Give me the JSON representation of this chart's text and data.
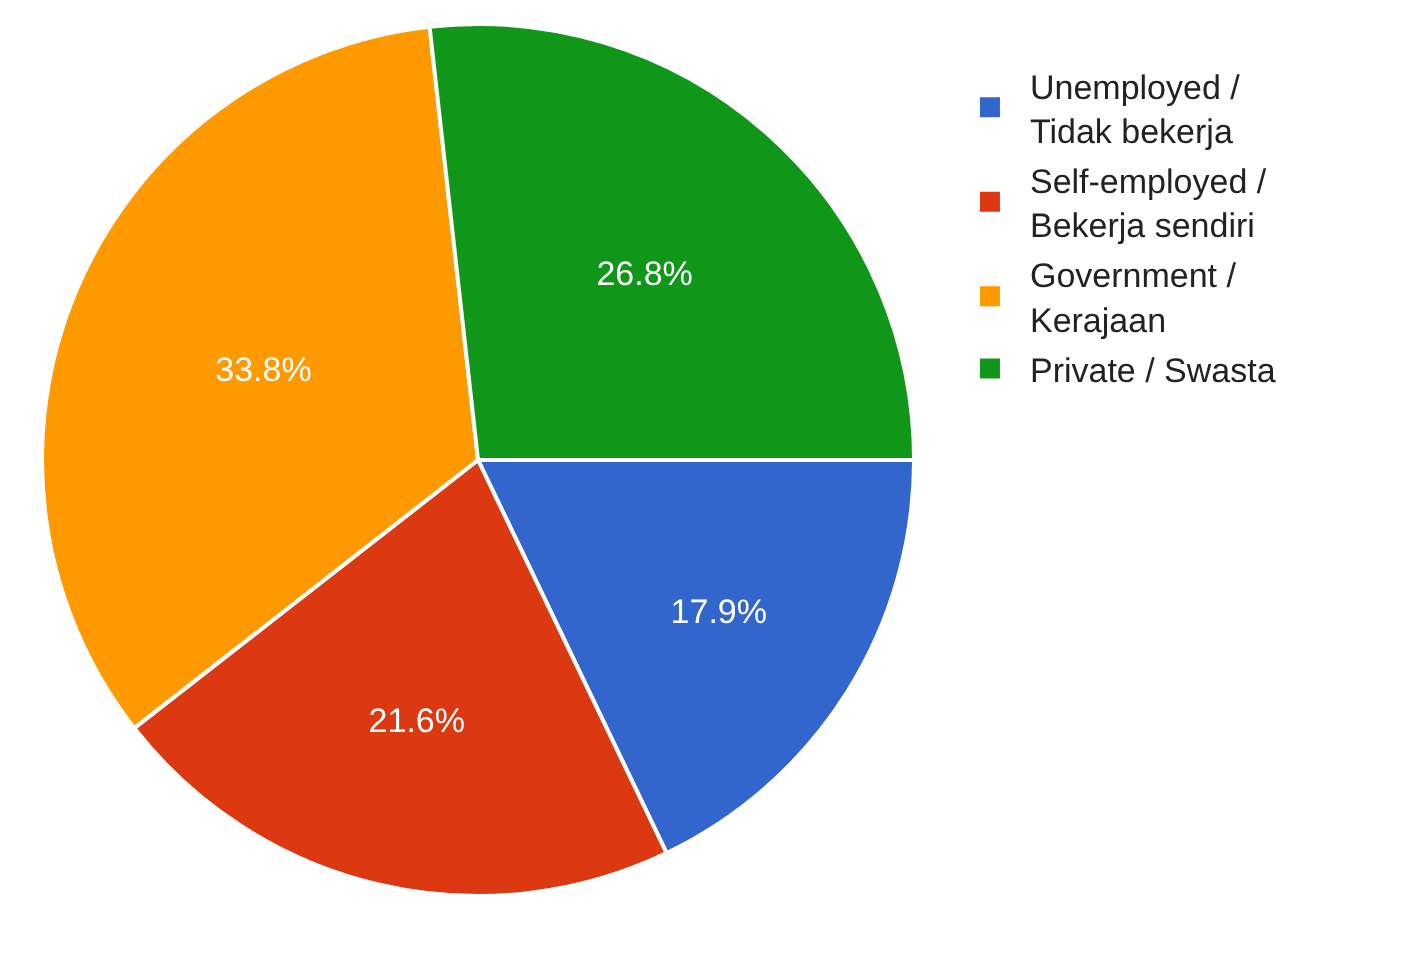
{
  "chart_data": {
    "type": "pie",
    "categories": [
      "Unemployed / Tidak bekerja",
      "Self-employed / Bekerja sendiri",
      "Government / Kerajaan",
      "Private / Swasta"
    ],
    "values": [
      17.9,
      21.6,
      33.8,
      26.8
    ],
    "value_labels": [
      "17.9%",
      "21.6%",
      "33.8%",
      "26.8%"
    ],
    "colors": [
      "#3366cc",
      "#dc3912",
      "#ff9900",
      "#109618"
    ],
    "legend": "top right"
  }
}
